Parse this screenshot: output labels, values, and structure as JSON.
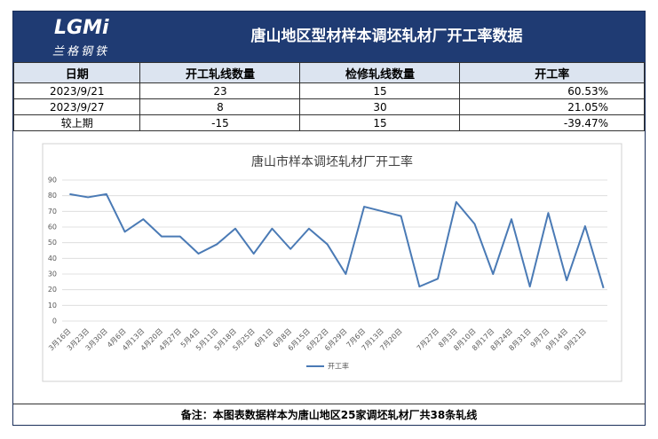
{
  "header": {
    "logo": {
      "mark": "LGMi",
      "name": "兰格钢铁"
    },
    "title": "唐山地区型材样本调坯轧材厂开工率数据"
  },
  "table": {
    "columns": [
      "日期",
      "开工轧线数量",
      "检修轧线数量",
      "开工率"
    ],
    "rows": [
      [
        "2023/9/21",
        "23",
        "15",
        "60.53%"
      ],
      [
        "2023/9/27",
        "8",
        "30",
        "21.05%"
      ],
      [
        "较上期",
        "-15",
        "15",
        "-39.47%"
      ]
    ]
  },
  "chart_data": {
    "type": "line",
    "title": "唐山市样本调坯轧材厂开工率",
    "categories": [
      "3月16日",
      "3月23日",
      "3月30日",
      "4月6日",
      "4月13日",
      "4月20日",
      "4月27日",
      "5月4日",
      "5月11日",
      "5月18日",
      "5月25日",
      "6月1日",
      "6月8日",
      "6月15日",
      "6月22日",
      "6月29日",
      "7月6日",
      "7月13日",
      "7月20日",
      null,
      "7月27日",
      "8月3日",
      "8月10日",
      "8月17日",
      "8月24日",
      "8月31日",
      "9月7日",
      "9月14日",
      "9月21日",
      null
    ],
    "series": [
      {
        "name": "开工率",
        "color": "#4a7ab5",
        "values": [
          81,
          79,
          81,
          57,
          65,
          54,
          54,
          43,
          49,
          59,
          43,
          59,
          46,
          59,
          49,
          30,
          73,
          70,
          67,
          22,
          27,
          76,
          62,
          30,
          65,
          22,
          69,
          26,
          60.53,
          21.05
        ]
      }
    ],
    "ylim": [
      0,
      90
    ],
    "yticks": [
      0,
      10,
      20,
      30,
      40,
      50,
      60,
      70,
      80,
      90
    ],
    "grid": true,
    "legend": "bottom"
  },
  "footer": {
    "note": "备注：本图表数据样本为唐山地区25家调坯轧材厂共38条轧线"
  }
}
